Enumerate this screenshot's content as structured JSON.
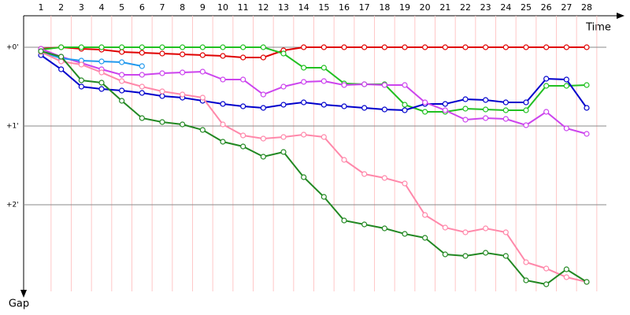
{
  "chart_data": {
    "type": "line",
    "x_label": "Time",
    "y_label": "Gap",
    "categories": [
      "1",
      "2",
      "3",
      "4",
      "5",
      "6",
      "7",
      "8",
      "9",
      "10",
      "11",
      "12",
      "13",
      "14",
      "15",
      "16",
      "17",
      "18",
      "19",
      "20",
      "21",
      "22",
      "23",
      "24",
      "25",
      "26",
      "27",
      "28"
    ],
    "ylim": [
      -0.4,
      3.1
    ],
    "y_inverted": true,
    "yticks": [
      {
        "value": 0,
        "label": "+0'"
      },
      {
        "value": 1,
        "label": "+1'"
      },
      {
        "value": 2,
        "label": "+2'"
      }
    ],
    "grid": true,
    "series": [
      {
        "color": "#e00000",
        "values": [
          0.02,
          0,
          0.02,
          0.03,
          0.06,
          0.07,
          0.08,
          0.09,
          0.1,
          0.11,
          0.13,
          0.13,
          0.04,
          0,
          0,
          0,
          0,
          0,
          0,
          0,
          0,
          0,
          0,
          0,
          0,
          0,
          0,
          0
        ]
      },
      {
        "color": "#22c022",
        "values": [
          0.03,
          0,
          0,
          0,
          0,
          0,
          0,
          0,
          0,
          0,
          0,
          0,
          0.08,
          0.26,
          0.26,
          0.46,
          0.47,
          0.47,
          0.73,
          0.82,
          0.82,
          0.78,
          0.79,
          0.8,
          0.8,
          0.49,
          0.49,
          0.48
        ]
      },
      {
        "color": "#0000cc",
        "values": [
          0.1,
          0.28,
          0.5,
          0.53,
          0.55,
          0.58,
          0.62,
          0.64,
          0.68,
          0.72,
          0.75,
          0.77,
          0.73,
          0.7,
          0.73,
          0.75,
          0.77,
          0.79,
          0.8,
          0.72,
          0.72,
          0.66,
          0.67,
          0.7,
          0.7,
          0.4,
          0.41,
          0.77
        ]
      },
      {
        "color": "#cc44ee",
        "values": [
          0.02,
          0.12,
          0.2,
          0.28,
          0.35,
          0.35,
          0.33,
          0.32,
          0.31,
          0.41,
          0.41,
          0.6,
          0.5,
          0.44,
          0.43,
          0.48,
          0.47,
          0.48,
          0.48,
          0.7,
          0.8,
          0.92,
          0.9,
          0.91,
          0.99,
          0.82,
          1.03,
          1.1
        ]
      },
      {
        "color": "#2299ee",
        "values": [
          0.06,
          0.14,
          0.17,
          0.18,
          0.19,
          0.24,
          null,
          null,
          null,
          null,
          null,
          null,
          null,
          null,
          null,
          null,
          null,
          null,
          null,
          null,
          null,
          null,
          null,
          null,
          null,
          null,
          null,
          null
        ]
      },
      {
        "color": "#ff88aa",
        "values": [
          0.06,
          0.18,
          0.22,
          0.32,
          0.43,
          0.5,
          0.56,
          0.6,
          0.64,
          0.98,
          1.12,
          1.16,
          1.14,
          1.11,
          1.14,
          1.43,
          1.61,
          1.66,
          1.73,
          2.13,
          2.29,
          2.35,
          2.3,
          2.35,
          2.73,
          2.81,
          2.92,
          2.98
        ]
      },
      {
        "color": "#228822",
        "values": [
          0.05,
          0.12,
          0.42,
          0.45,
          0.68,
          0.9,
          0.95,
          0.98,
          1.05,
          1.2,
          1.26,
          1.39,
          1.33,
          1.65,
          1.9,
          2.2,
          2.25,
          2.3,
          2.37,
          2.42,
          2.63,
          2.65,
          2.61,
          2.65,
          2.96,
          3.01,
          2.82,
          2.98
        ]
      }
    ]
  }
}
